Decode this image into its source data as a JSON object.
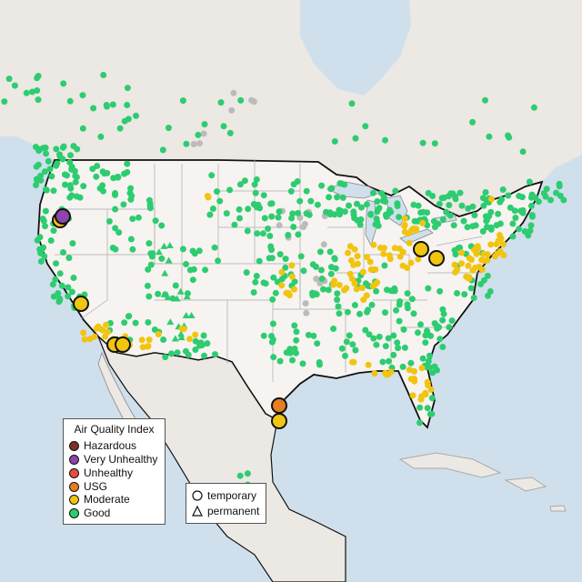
{
  "legend": {
    "title": "Air Quality Index",
    "categories": [
      {
        "label": "Hazardous",
        "color": "#7e2e20"
      },
      {
        "label": "Very Unhealthy",
        "color": "#8e44ad"
      },
      {
        "label": "Unhealthy",
        "color": "#e74c3c"
      },
      {
        "label": "USG",
        "color": "#e67e22"
      },
      {
        "label": "Moderate",
        "color": "#f1c40f"
      },
      {
        "label": "Good",
        "color": "#2ecc71"
      }
    ],
    "no_data_color": "#bbbbbb",
    "shape_legend": [
      {
        "label": "temporary",
        "shape": "circle-icon"
      },
      {
        "label": "permanent",
        "shape": "triangle-icon"
      }
    ]
  },
  "highlighted_monitors": [
    {
      "region": "Southern Oregon",
      "category": "Very Unhealthy"
    },
    {
      "region": "Southern Oregon",
      "category": "Moderate"
    },
    {
      "region": "Central California",
      "category": "Moderate"
    },
    {
      "region": "Southern California / Arizona",
      "category": "Moderate"
    },
    {
      "region": "Southern California / Arizona",
      "category": "Moderate"
    },
    {
      "region": "Ohio",
      "category": "Moderate"
    },
    {
      "region": "Ohio",
      "category": "Moderate"
    },
    {
      "region": "Texas Gulf Coast",
      "category": "USG"
    },
    {
      "region": "Texas Gulf Coast",
      "category": "Moderate"
    }
  ]
}
